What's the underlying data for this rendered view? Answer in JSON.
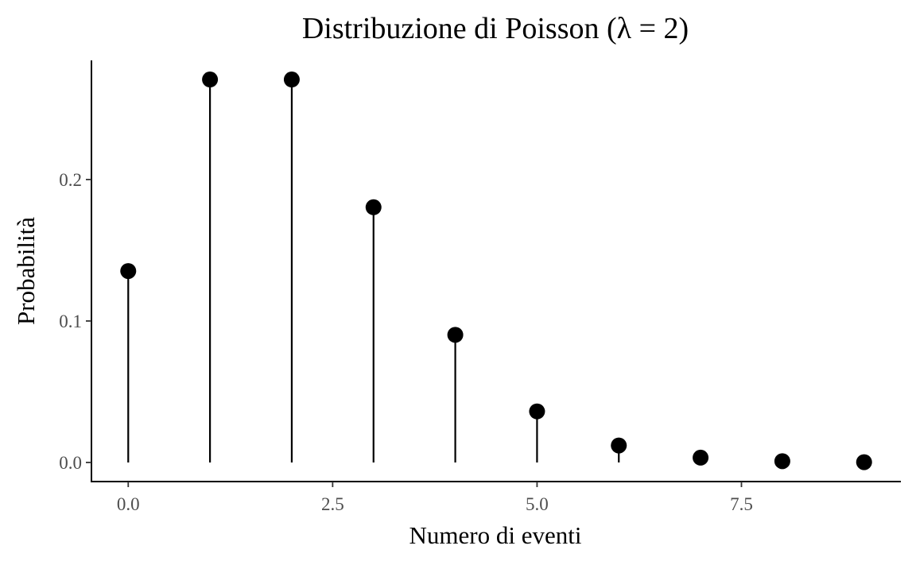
{
  "chart_data": {
    "type": "scatter",
    "title": "Distribuzione di Poisson (λ = 2)",
    "xlabel": "Numero di eventi",
    "ylabel": "Probabilità",
    "x": [
      0,
      1,
      2,
      3,
      4,
      5,
      6,
      7,
      8,
      9
    ],
    "y": [
      0.1353,
      0.2707,
      0.2707,
      0.1804,
      0.0902,
      0.0361,
      0.012,
      0.0034,
      0.0009,
      0.0002
    ],
    "xticks": [
      0,
      2.5,
      5,
      7.5
    ],
    "xtick_labels": [
      "0.0",
      "2.5",
      "5.0",
      "7.5"
    ],
    "yticks": [
      0,
      0.1,
      0.2
    ],
    "ytick_labels": [
      "0.0",
      "0.1",
      "0.2"
    ],
    "xlim": [
      -0.45,
      9.45
    ],
    "ylim": [
      -0.0135,
      0.2842
    ],
    "grid": false,
    "style": "lollipop",
    "color": "#000000"
  }
}
